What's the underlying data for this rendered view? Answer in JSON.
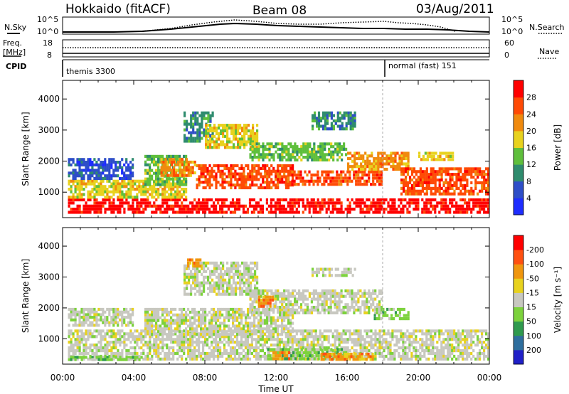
{
  "header": {
    "station": "Hokkaido (fitACF)",
    "beam": "Beam 08",
    "date": "03/Aug/2011"
  },
  "top_panels": {
    "nsky_label": "N.Sky",
    "nsky_ticks": [
      "10^5",
      "10^0"
    ],
    "nsearch_label": "N.Search",
    "nsearch_ticks": [
      "10^5",
      "10^0"
    ],
    "freq_label": "Freq.",
    "freq_unit": "[MHz]",
    "freq_ticks": [
      "18",
      "8"
    ],
    "nave_label": "Nave",
    "nave_ticks": [
      "60",
      "0"
    ],
    "cpid_label": "CPID",
    "cpid_modes": [
      {
        "label": "themis 3300",
        "start": "00:00"
      },
      {
        "label": "normal (fast) 151",
        "start": "18:00"
      }
    ]
  },
  "chart_data": [
    {
      "type": "heatmap",
      "name": "power",
      "ylabel": "Slant Range [km]",
      "xlabel": "",
      "yticks": [
        1000,
        2000,
        3000,
        4000
      ],
      "ylim": [
        180,
        4600
      ],
      "xlim_hours": [
        0,
        24
      ],
      "colorbar_label": "Power [dB]",
      "colorbar_ticks": [
        "4",
        "8",
        "12",
        "16",
        "20",
        "24",
        "28"
      ],
      "colorbar_colors": [
        "#1e2dff",
        "#2e4ec8",
        "#2f8c6e",
        "#5fbf3c",
        "#e8d21e",
        "#f08a0e",
        "#ff4a05",
        "#ff0000"
      ],
      "echo_bands": [
        {
          "t0": 0.3,
          "t1": 24.0,
          "r0": 300,
          "r1": 800,
          "level": 7
        },
        {
          "t0": 0.3,
          "t1": 7.0,
          "r0": 800,
          "r1": 1400,
          "level": 4
        },
        {
          "t0": 0.3,
          "t1": 4.0,
          "r0": 1400,
          "r1": 2100,
          "level": 1
        },
        {
          "t0": 4.6,
          "t1": 7.0,
          "r0": 1200,
          "r1": 2200,
          "level": 3
        },
        {
          "t0": 5.5,
          "t1": 7.5,
          "r0": 1500,
          "r1": 2100,
          "level": 5
        },
        {
          "t0": 6.8,
          "t1": 8.5,
          "r0": 2600,
          "r1": 3600,
          "level": 2
        },
        {
          "t0": 7.5,
          "t1": 13.0,
          "r0": 1100,
          "r1": 1900,
          "level": 6
        },
        {
          "t0": 8.0,
          "t1": 11.0,
          "r0": 2400,
          "r1": 3200,
          "level": 4
        },
        {
          "t0": 10.5,
          "t1": 16.0,
          "r0": 2000,
          "r1": 2600,
          "level": 3
        },
        {
          "t0": 12.5,
          "t1": 18.0,
          "r0": 1200,
          "r1": 1700,
          "level": 6
        },
        {
          "t0": 14.0,
          "t1": 16.5,
          "r0": 3000,
          "r1": 3600,
          "level": 2
        },
        {
          "t0": 16.0,
          "t1": 19.5,
          "r0": 1700,
          "r1": 2300,
          "level": 5
        },
        {
          "t0": 19.0,
          "t1": 24.0,
          "r0": 900,
          "r1": 1800,
          "level": 6
        },
        {
          "t0": 20.0,
          "t1": 22.0,
          "r0": 2000,
          "r1": 2300,
          "level": 4
        }
      ]
    },
    {
      "type": "heatmap",
      "name": "velocity",
      "ylabel": "Slant Range [km]",
      "xlabel": "Time UT",
      "yticks": [
        1000,
        2000,
        3000,
        4000
      ],
      "ylim": [
        180,
        4600
      ],
      "xlim_hours": [
        0,
        24
      ],
      "xticks": [
        "00:00",
        "04:00",
        "08:00",
        "12:00",
        "16:00",
        "20:00",
        "00:00"
      ],
      "colorbar_label": "Velocity [m s⁻¹]",
      "colorbar_ticks": [
        "200",
        "100",
        "50",
        "15",
        "-15",
        "-50",
        "-100",
        "-200"
      ],
      "colorbar_colors": [
        "#2020c8",
        "#2e6e9e",
        "#2f9a4e",
        "#7cd23c",
        "#c8c8c0",
        "#e8d21e",
        "#f0960e",
        "#ff5010",
        "#ff0000"
      ],
      "echo_bands": [
        {
          "t0": 0.3,
          "t1": 24.0,
          "r0": 300,
          "r1": 1300,
          "level": 4
        },
        {
          "t0": 0.3,
          "t1": 4.0,
          "r0": 1400,
          "r1": 2000,
          "level": 4
        },
        {
          "t0": 4.6,
          "t1": 13.0,
          "r0": 1100,
          "r1": 2000,
          "level": 4
        },
        {
          "t0": 6.8,
          "t1": 11.0,
          "r0": 2400,
          "r1": 3500,
          "level": 4
        },
        {
          "t0": 10.5,
          "t1": 18.0,
          "r0": 1800,
          "r1": 2600,
          "level": 4
        },
        {
          "t0": 14.0,
          "t1": 16.5,
          "r0": 3000,
          "r1": 3300,
          "level": 4
        },
        {
          "t0": 0.3,
          "t1": 4.5,
          "r0": 300,
          "r1": 450,
          "level": 3
        },
        {
          "t0": 11.5,
          "t1": 16.0,
          "r0": 300,
          "r1": 700,
          "level": 3
        },
        {
          "t0": 17.5,
          "t1": 19.5,
          "r0": 1600,
          "r1": 2000,
          "level": 3
        },
        {
          "t0": 14.5,
          "t1": 17.5,
          "r0": 300,
          "r1": 550,
          "level": 6
        },
        {
          "t0": 11.8,
          "t1": 12.8,
          "r0": 300,
          "r1": 600,
          "level": 6
        },
        {
          "t0": 7.0,
          "t1": 7.8,
          "r0": 3300,
          "r1": 3600,
          "level": 6
        },
        {
          "t0": 11.0,
          "t1": 12.0,
          "r0": 2000,
          "r1": 2400,
          "level": 6
        }
      ]
    }
  ]
}
